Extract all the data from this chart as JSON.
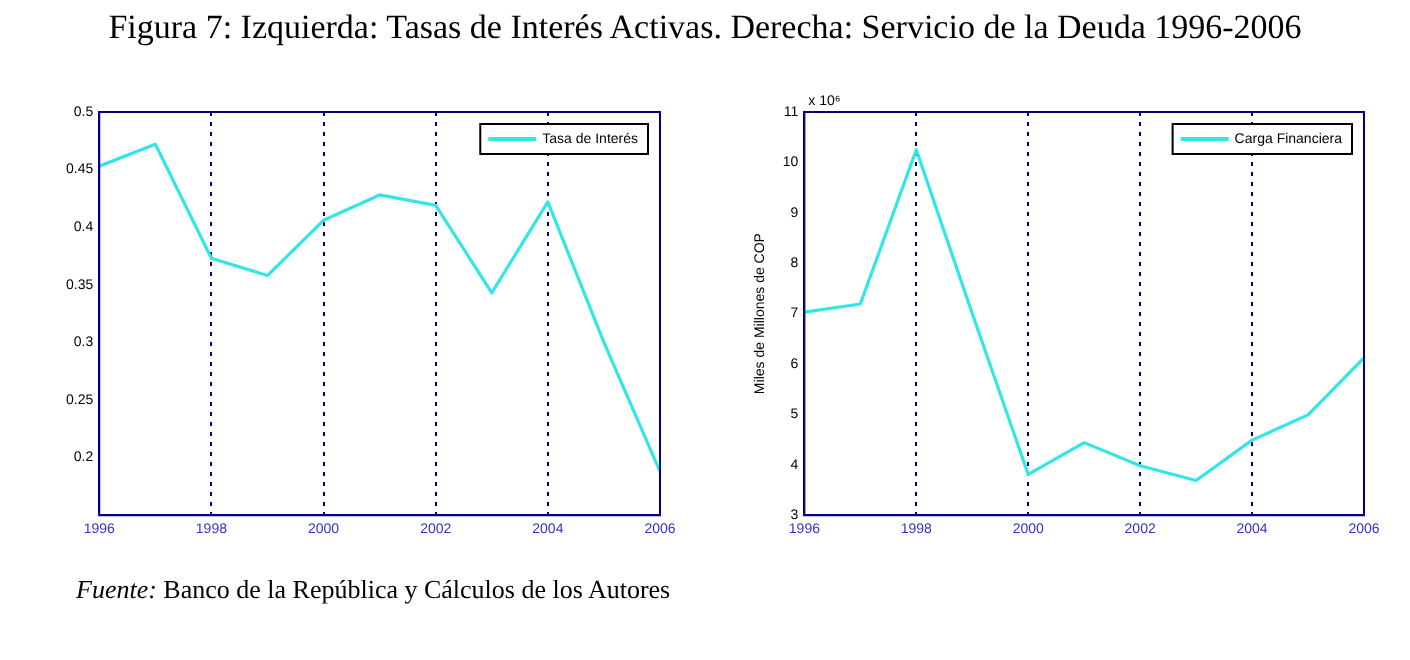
{
  "chart_data": [
    {
      "type": "line",
      "title": "Figura 7: Izquierda: Tasas de Interés Activas. Derecha: Servicio de la Deuda 1996-2006",
      "x": [
        1996,
        1997,
        1998,
        1999,
        2000,
        2001,
        2002,
        2003,
        2004,
        2005,
        2006
      ],
      "series": [
        {
          "name": "Tasa de Interés",
          "color": "#33e6e6",
          "values": [
            0.453,
            0.472,
            0.373,
            0.358,
            0.406,
            0.428,
            0.419,
            0.343,
            0.422,
            0.3,
            0.188
          ]
        }
      ],
      "xlim": [
        1996,
        2006
      ],
      "xticks": [
        1996,
        1998,
        2000,
        2002,
        2004,
        2006
      ],
      "ylim": [
        0.15,
        0.5
      ],
      "yticks": [
        0.2,
        0.25,
        0.3,
        0.35,
        0.4,
        0.45,
        0.5
      ],
      "grid": "x",
      "legend": "top right",
      "marker": "none",
      "line_style": "solid"
    },
    {
      "type": "line",
      "ylabel": "Miles de Millones de COP",
      "x": [
        1996,
        1997,
        1998,
        1999,
        2000,
        2001,
        2002,
        2003,
        2004,
        2005,
        2006
      ],
      "series": [
        {
          "name": "Carga Financiera",
          "color": "#33e6e6",
          "values": [
            7.03,
            7.19,
            10.25,
            7.0,
            3.81,
            4.44,
            3.98,
            3.69,
            4.49,
            4.99,
            6.12
          ]
        }
      ],
      "xlim": [
        1996,
        2006
      ],
      "xticks": [
        1996,
        1998,
        2000,
        2002,
        2004,
        2006
      ],
      "ylim": [
        3,
        11
      ],
      "yticks": [
        3,
        4,
        5,
        6,
        7,
        8,
        9,
        10,
        11
      ],
      "grid": "x",
      "legend": "top right",
      "marker": "none",
      "line_style": "solid",
      "annotations": [
        "x 10⁶",
        "Fuente: Banco de la República y Cálculos de los Autores"
      ]
    }
  ]
}
